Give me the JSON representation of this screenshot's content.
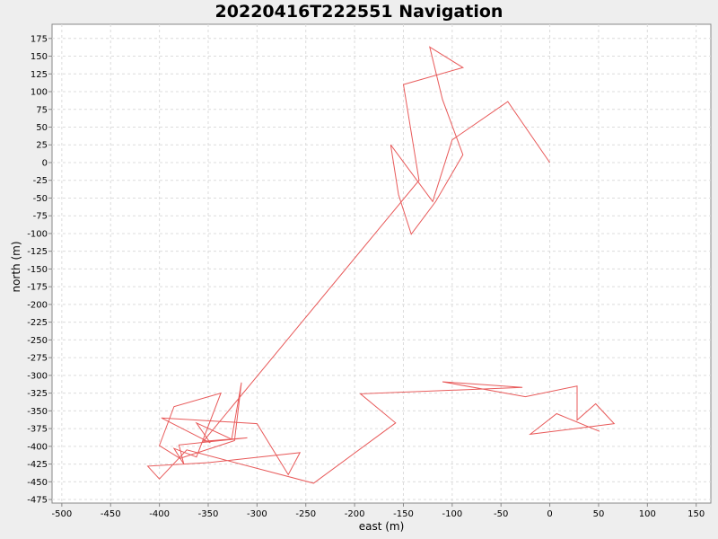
{
  "chart_data": {
    "type": "line",
    "title": "20220416T222551 Navigation",
    "xlabel": "east (m)",
    "ylabel": "north (m)",
    "xlim": [
      -510,
      165
    ],
    "ylim": [
      -480,
      195
    ],
    "grid": true,
    "xticks": [
      -500,
      -450,
      -400,
      -350,
      -300,
      -250,
      -200,
      -150,
      -100,
      -50,
      0,
      50,
      100,
      150
    ],
    "yticks": [
      175,
      150,
      125,
      100,
      75,
      50,
      25,
      0,
      -25,
      -50,
      -75,
      -100,
      -125,
      -150,
      -175,
      -200,
      -225,
      -250,
      -275,
      -300,
      -325,
      -350,
      -375,
      -400,
      -425,
      -450,
      -475
    ],
    "series": [
      {
        "color": "#e85a5a",
        "points": [
          [
            0,
            0
          ],
          [
            -43,
            86
          ],
          [
            -100,
            32
          ],
          [
            -120,
            -55
          ],
          [
            -163,
            25
          ],
          [
            -155,
            -45
          ],
          [
            -142,
            -101
          ],
          [
            -117,
            -55
          ],
          [
            -89,
            11
          ],
          [
            -110,
            89
          ],
          [
            -123,
            163
          ],
          [
            -89,
            134
          ],
          [
            -150,
            110
          ],
          [
            -134,
            -25
          ],
          [
            -355,
            -393
          ],
          [
            -310,
            -388
          ],
          [
            -380,
            -398
          ],
          [
            -375,
            -425
          ],
          [
            -385,
            -403
          ],
          [
            -362,
            -415
          ],
          [
            -337,
            -325
          ],
          [
            -385,
            -344
          ],
          [
            -400,
            -399
          ],
          [
            -379,
            -417
          ],
          [
            -323,
            -392
          ],
          [
            -316,
            -310
          ],
          [
            -326,
            -390
          ],
          [
            -362,
            -367
          ],
          [
            -348,
            -395
          ],
          [
            -398,
            -360
          ],
          [
            -300,
            -368
          ],
          [
            -268,
            -440
          ],
          [
            -256,
            -409
          ],
          [
            -350,
            -423
          ],
          [
            -412,
            -428
          ],
          [
            -400,
            -446
          ],
          [
            -372,
            -405
          ],
          [
            -242,
            -452
          ],
          [
            -158,
            -367
          ],
          [
            -194,
            -326
          ],
          [
            -28,
            -317
          ],
          [
            -110,
            -309
          ],
          [
            -25,
            -330
          ],
          [
            28,
            -315
          ],
          [
            28,
            -363
          ],
          [
            47,
            -340
          ],
          [
            66,
            -368
          ],
          [
            -20,
            -383
          ],
          [
            7,
            -354
          ],
          [
            51,
            -379
          ]
        ]
      }
    ]
  }
}
